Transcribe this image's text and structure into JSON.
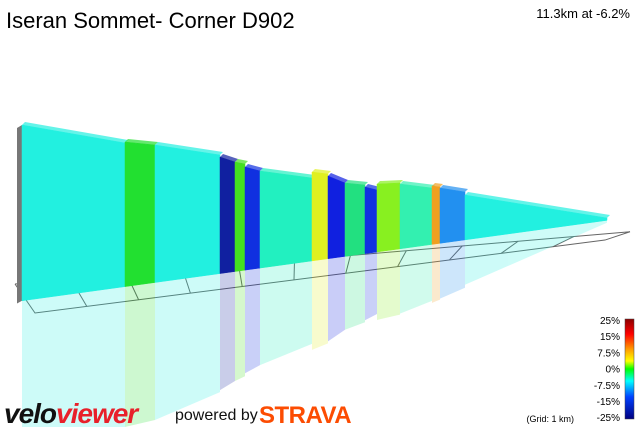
{
  "header": {
    "title": "Iseran Sommet- Corner D902",
    "summary": "11.3km at -6.2%"
  },
  "legend": {
    "labels": [
      "25%",
      "15%",
      "7.5%",
      "0%",
      "-7.5%",
      "-15%",
      "-25%"
    ],
    "grid_note": "(Grid: 1 km)"
  },
  "footer": {
    "brand_velo": "velo",
    "brand_viewer": "viewer",
    "powered_by": "powered by",
    "strava": "STRAVA"
  }
}
